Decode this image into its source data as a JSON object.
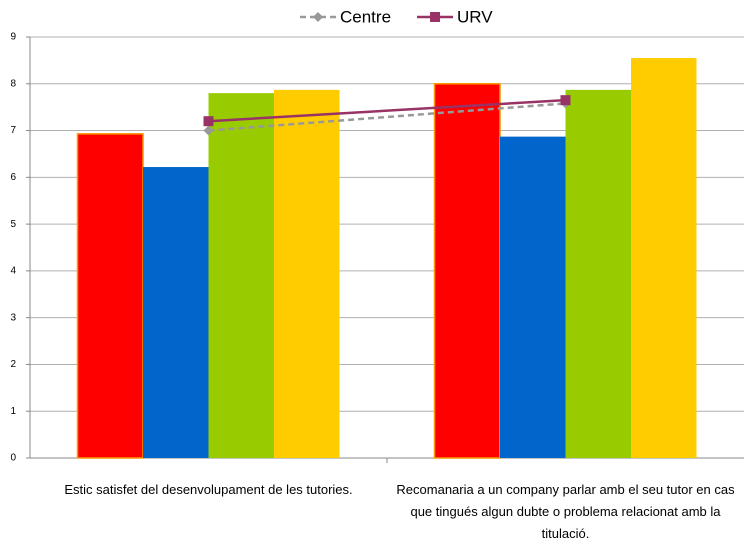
{
  "chart_data": {
    "type": "bar",
    "categories": [
      "Estic satisfet del desenvolupament de les tutories.",
      "Recomanaria a un company parlar amb el seu tutor en cas que tingués algun dubte o problema relacionat amb la titulació."
    ],
    "series": [
      {
        "color": "#ff0000",
        "values": [
          6.93,
          8.0
        ]
      },
      {
        "color": "#0066cc",
        "values": [
          6.22,
          6.87
        ]
      },
      {
        "color": "#99cc00",
        "values": [
          7.8,
          7.87
        ]
      },
      {
        "color": "#ffcc00",
        "values": [
          7.87,
          8.55
        ]
      },
      {
        "name": "Centre",
        "type": "line",
        "color": "#999999",
        "values": [
          7.0,
          7.58
        ]
      },
      {
        "name": "URV",
        "type": "line",
        "color": "#993366",
        "values": [
          7.2,
          7.65
        ]
      }
    ],
    "ylim": [
      0,
      9
    ],
    "yticks": [
      0,
      1,
      2,
      3,
      4,
      5,
      6,
      7,
      8,
      9
    ],
    "grid": true,
    "legend": "top"
  }
}
